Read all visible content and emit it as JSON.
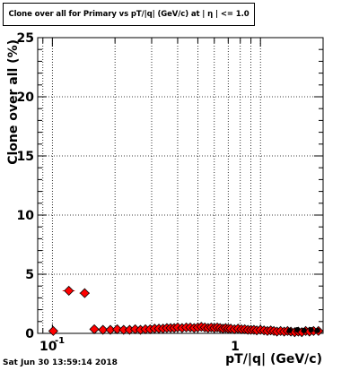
{
  "chart_data": {
    "type": "scatter",
    "title": "Clone  over all for Primary vs pT/|q| (GeV/c) at |  η | <= 1.0",
    "xlabel": "pT/|q| (GeV/c)",
    "ylabel": "Clone  over all (%)",
    "xscale": "log",
    "xlim": [
      0.085,
      2.0
    ],
    "ylim": [
      0,
      25
    ],
    "yticks": [
      0,
      5,
      10,
      15,
      20,
      25
    ],
    "grid": true,
    "series": [
      {
        "color": "#ff0000",
        "marker": "diamond",
        "points": [
          {
            "x": 0.101,
            "y": 0.2,
            "xerr": 0.002
          },
          {
            "x": 0.12,
            "y": 3.6,
            "xerr": 0.008
          },
          {
            "x": 0.143,
            "y": 3.4,
            "xerr": 0.008
          },
          {
            "x": 0.159,
            "y": 0.35
          },
          {
            "x": 0.175,
            "y": 0.3
          },
          {
            "x": 0.19,
            "y": 0.3
          },
          {
            "x": 0.205,
            "y": 0.35
          },
          {
            "x": 0.22,
            "y": 0.3
          },
          {
            "x": 0.235,
            "y": 0.3
          },
          {
            "x": 0.25,
            "y": 0.35
          },
          {
            "x": 0.265,
            "y": 0.3
          },
          {
            "x": 0.28,
            "y": 0.35
          },
          {
            "x": 0.295,
            "y": 0.35
          },
          {
            "x": 0.31,
            "y": 0.4
          },
          {
            "x": 0.325,
            "y": 0.4
          },
          {
            "x": 0.34,
            "y": 0.4
          },
          {
            "x": 0.355,
            "y": 0.45
          },
          {
            "x": 0.37,
            "y": 0.45
          },
          {
            "x": 0.385,
            "y": 0.45
          },
          {
            "x": 0.4,
            "y": 0.5
          },
          {
            "x": 0.42,
            "y": 0.45
          },
          {
            "x": 0.44,
            "y": 0.5
          },
          {
            "x": 0.46,
            "y": 0.5
          },
          {
            "x": 0.48,
            "y": 0.45
          },
          {
            "x": 0.5,
            "y": 0.5
          },
          {
            "x": 0.52,
            "y": 0.55
          },
          {
            "x": 0.54,
            "y": 0.5
          },
          {
            "x": 0.56,
            "y": 0.45
          },
          {
            "x": 0.58,
            "y": 0.5
          },
          {
            "x": 0.6,
            "y": 0.45
          },
          {
            "x": 0.62,
            "y": 0.5
          },
          {
            "x": 0.64,
            "y": 0.45
          },
          {
            "x": 0.66,
            "y": 0.4
          },
          {
            "x": 0.68,
            "y": 0.45
          },
          {
            "x": 0.7,
            "y": 0.4
          },
          {
            "x": 0.72,
            "y": 0.4
          },
          {
            "x": 0.75,
            "y": 0.35
          },
          {
            "x": 0.78,
            "y": 0.4
          },
          {
            "x": 0.81,
            "y": 0.35
          },
          {
            "x": 0.84,
            "y": 0.35
          },
          {
            "x": 0.87,
            "y": 0.3
          },
          {
            "x": 0.9,
            "y": 0.3
          },
          {
            "x": 0.93,
            "y": 0.3
          },
          {
            "x": 0.96,
            "y": 0.25
          },
          {
            "x": 1.0,
            "y": 0.3
          },
          {
            "x": 1.04,
            "y": 0.25
          },
          {
            "x": 1.08,
            "y": 0.2
          },
          {
            "x": 1.12,
            "y": 0.25
          },
          {
            "x": 1.16,
            "y": 0.2
          },
          {
            "x": 1.2,
            "y": 0.15
          },
          {
            "x": 1.25,
            "y": 0.2
          },
          {
            "x": 1.3,
            "y": 0.15
          },
          {
            "x": 1.35,
            "y": 0.2
          },
          {
            "x": 1.4,
            "y": 0.15
          },
          {
            "x": 1.46,
            "y": 0.1
          },
          {
            "x": 1.52,
            "y": 0.15
          },
          {
            "x": 1.58,
            "y": 0.1
          },
          {
            "x": 1.65,
            "y": 0.2
          },
          {
            "x": 1.72,
            "y": 0.15
          },
          {
            "x": 1.8,
            "y": 0.2
          },
          {
            "x": 1.9,
            "y": 0.2
          }
        ]
      },
      {
        "color": "#000000",
        "marker": "circle",
        "points": [
          {
            "x": 1.38,
            "y": 0.25
          },
          {
            "x": 1.5,
            "y": 0.3
          },
          {
            "x": 1.62,
            "y": 0.25
          },
          {
            "x": 1.75,
            "y": 0.3
          },
          {
            "x": 1.88,
            "y": 0.25
          }
        ]
      }
    ]
  },
  "axis_labels": {
    "x_major": [
      "10",
      "-1",
      "1"
    ],
    "y_ticks": [
      "0",
      "5",
      "10",
      "15",
      "20",
      "25"
    ]
  },
  "footer": "Sat Jun 30 13:59:14 2018"
}
